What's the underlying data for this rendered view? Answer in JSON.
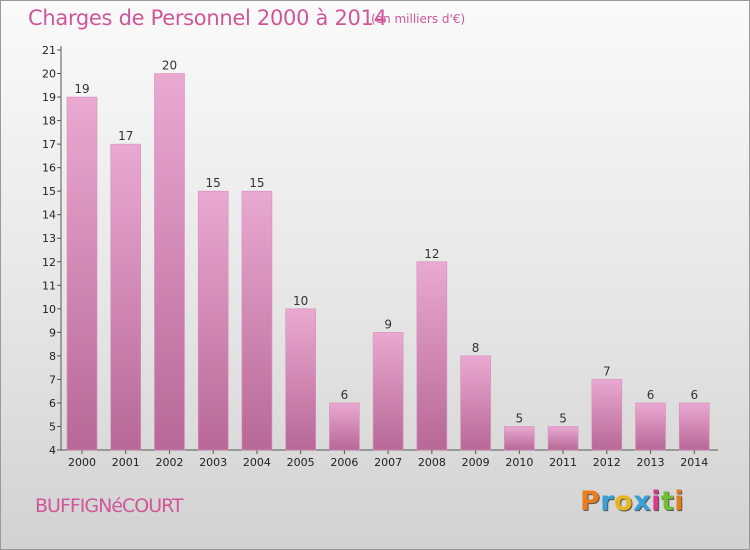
{
  "header": {
    "title": "Charges de Personnel 2000 à 2014",
    "subtitle": "(en milliers d'€)"
  },
  "footer": {
    "commune": "BUFFIGNéCOURT",
    "logo": "Proxiti",
    "logo_colors": [
      "#e87d1e",
      "#3aa0d8",
      "#e8b51e",
      "#3aa0d8",
      "#d43a8f",
      "#6fbf3b",
      "#e87d1e"
    ]
  },
  "colors": {
    "bar_top": "#e9a9d1",
    "bar_bottom": "#b86896",
    "title": "#d0569a"
  },
  "chart_data": {
    "type": "bar",
    "categories": [
      "2000",
      "2001",
      "2002",
      "2003",
      "2004",
      "2005",
      "2006",
      "2007",
      "2008",
      "2009",
      "2010",
      "2011",
      "2012",
      "2013",
      "2014"
    ],
    "values": [
      19,
      17,
      20,
      15,
      15,
      10,
      6,
      9,
      12,
      8,
      5,
      5,
      7,
      6,
      6
    ],
    "title": "Charges de Personnel 2000 à 2014",
    "ylim": [
      4,
      21
    ],
    "yticks": [
      4,
      5,
      6,
      7,
      8,
      9,
      10,
      11,
      12,
      13,
      14,
      15,
      16,
      17,
      18,
      19,
      20,
      21
    ],
    "grid": false
  }
}
